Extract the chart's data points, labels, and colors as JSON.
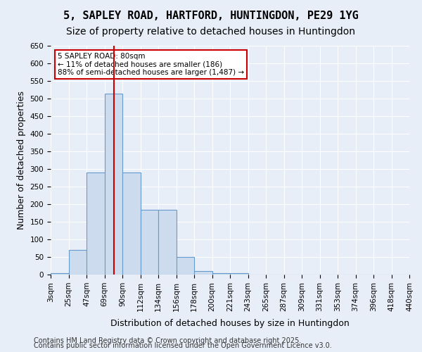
{
  "title": "5, SAPLEY ROAD, HARTFORD, HUNTINGDON, PE29 1YG",
  "subtitle": "Size of property relative to detached houses in Huntingdon",
  "xlabel": "Distribution of detached houses by size in Huntingdon",
  "ylabel": "Number of detached properties",
  "bin_labels": [
    "3sqm",
    "25sqm",
    "47sqm",
    "69sqm",
    "90sqm",
    "112sqm",
    "134sqm",
    "156sqm",
    "178sqm",
    "200sqm",
    "221sqm",
    "243sqm",
    "265sqm",
    "287sqm",
    "309sqm",
    "331sqm",
    "353sqm",
    "374sqm",
    "396sqm",
    "418sqm",
    "440sqm"
  ],
  "bar_heights": [
    5,
    70,
    290,
    515,
    290,
    185,
    185,
    50,
    10,
    5,
    5,
    1,
    0,
    0,
    1,
    0,
    0,
    0,
    0,
    0
  ],
  "bar_color": "#ccdcee",
  "bar_edge_color": "#6699cc",
  "subject_sqm": 80,
  "annotation_text": "5 SAPLEY ROAD: 80sqm\n← 11% of detached houses are smaller (186)\n88% of semi-detached houses are larger (1,487) →",
  "annotation_box_color": "#ffffff",
  "annotation_box_edge": "#cc0000",
  "vline_color": "#cc0000",
  "ylim": [
    0,
    650
  ],
  "yticks": [
    0,
    50,
    100,
    150,
    200,
    250,
    300,
    350,
    400,
    450,
    500,
    550,
    600,
    650
  ],
  "background_color": "#e8eef8",
  "footer_line1": "Contains HM Land Registry data © Crown copyright and database right 2025.",
  "footer_line2": "Contains public sector information licensed under the Open Government Licence v3.0.",
  "title_fontsize": 11,
  "subtitle_fontsize": 10,
  "axis_label_fontsize": 9,
  "tick_fontsize": 7.5,
  "footer_fontsize": 7
}
